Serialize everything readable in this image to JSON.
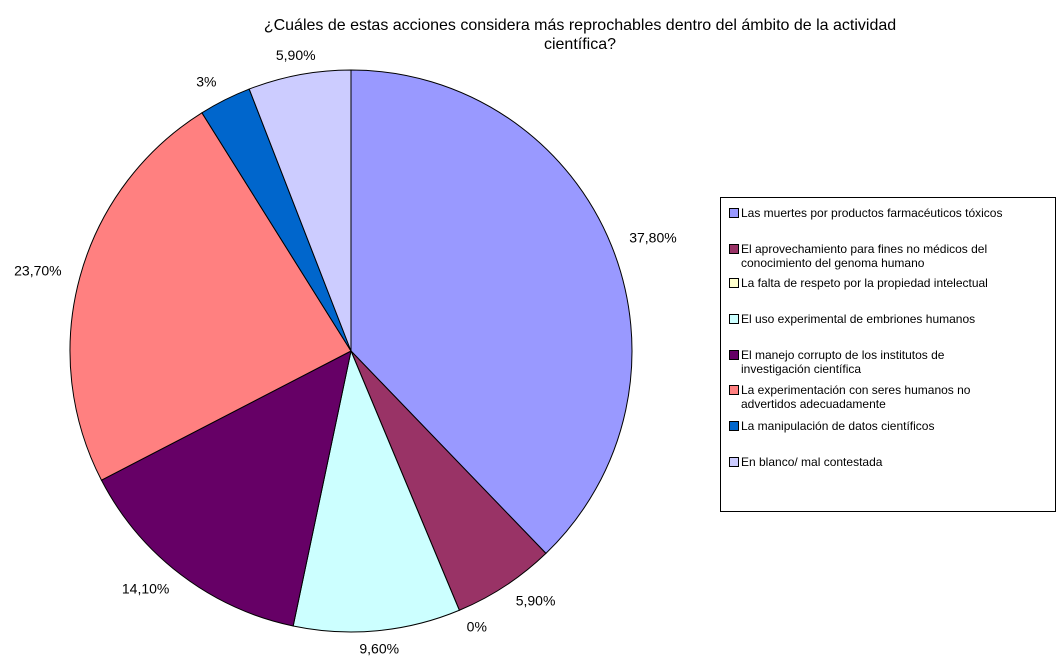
{
  "chart_data": {
    "type": "pie",
    "title": "¿Cuáles de estas  acciones considera más reprochables dentro del ámbito de la actividad\ncientífica?",
    "categories": [
      "Las muertes por productos farmacéuticos tóxicos",
      "El aprovechamiento para fines no médicos del\nconocimiento del genoma humano",
      "La falta de respeto   por la propiedad intelectual",
      "El uso experimental de embriones humanos",
      "El manejo corrupto de los institutos de\ninvestigación científica",
      "La experimentación con seres humanos no\nadvertidos adecuadamente",
      "La manipulación de datos científicos",
      "En blanco/ mal contestada"
    ],
    "values": [
      37.8,
      5.9,
      0,
      9.6,
      14.1,
      23.7,
      3,
      5.9
    ],
    "value_labels": [
      "37,80%",
      "5,90%",
      "0%",
      "9,60%",
      "14,10%",
      "23,70%",
      "3%",
      "5,90%"
    ],
    "colors": [
      "#9999FF",
      "#993366",
      "#FFFFCC",
      "#CCFFFF",
      "#660066",
      "#FF8080",
      "#0066CC",
      "#CCCCFF"
    ],
    "legend": "right"
  }
}
